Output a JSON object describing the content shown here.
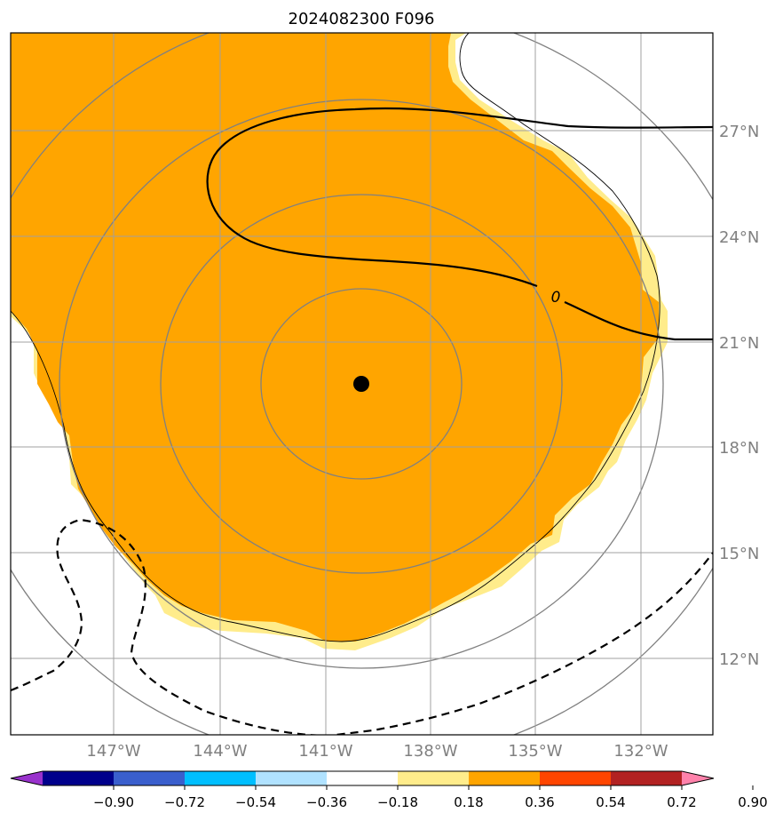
{
  "title": "2024082300 F096",
  "map": {
    "lon_ticks": [
      {
        "value": -147,
        "label": "147°W"
      },
      {
        "value": -144,
        "label": "144°W"
      },
      {
        "value": -141,
        "label": "141°W"
      },
      {
        "value": -138,
        "label": "138°W"
      },
      {
        "value": -135,
        "label": "135°W"
      },
      {
        "value": -132,
        "label": "132°W"
      }
    ],
    "lat_ticks": [
      {
        "value": 27,
        "label": "27°N"
      },
      {
        "value": 24,
        "label": "24°N"
      },
      {
        "value": 21,
        "label": "21°N"
      },
      {
        "value": 18,
        "label": "18°N"
      },
      {
        "value": 15,
        "label": "15°N"
      },
      {
        "value": 12,
        "label": "12°N"
      }
    ],
    "extent": {
      "lon": [
        -150,
        -130
      ],
      "lat": [
        9.8,
        29.8
      ]
    },
    "center": {
      "lon": -140,
      "lat": 19.8
    },
    "grid": true,
    "contour_label": "0",
    "center_marker": "storm-center-dot"
  },
  "colorbar": {
    "levels": [
      "−0.90",
      "−0.72",
      "−0.54",
      "−0.36",
      "−0.18",
      "0.18",
      "0.36",
      "0.54",
      "0.72",
      "0.90"
    ],
    "colors": [
      "#9932cc",
      "#00008b",
      "#3a5fcd",
      "#00bfff",
      "#b0e2ff",
      "#ffffff",
      "#ffec8b",
      "#ffa500",
      "#ff4500",
      "#b22222",
      "#ff82ab"
    ],
    "extend": "both"
  }
}
